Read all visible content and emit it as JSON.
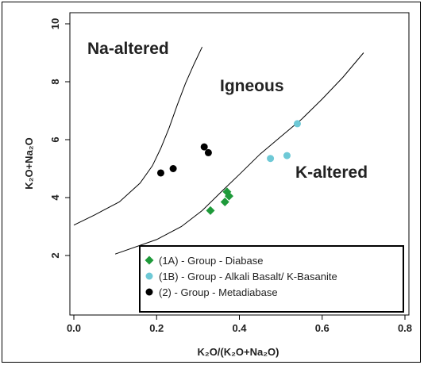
{
  "chart_data": {
    "type": "scatter",
    "xlabel": "K₂O/(K₂O+Na₂O)",
    "ylabel": "K₂O+Na₂O",
    "xlim": [
      0.0,
      0.8
    ],
    "ylim": [
      0,
      10
    ],
    "x_ticks": [
      "0.0",
      "0.2",
      "0.4",
      "0.6",
      "0.8"
    ],
    "y_ticks": [
      "2",
      "4",
      "6",
      "8",
      "10"
    ],
    "grid": false,
    "legend_position": "bottom-right",
    "regions": [
      {
        "label": "Na-altered"
      },
      {
        "label": "Igneous"
      },
      {
        "label": "K-altered"
      }
    ],
    "boundary_lines": [
      {
        "name": "Na-altered boundary",
        "x": [
          0.0,
          0.05,
          0.11,
          0.16,
          0.19,
          0.21,
          0.23,
          0.25,
          0.27,
          0.29,
          0.31
        ],
        "y": [
          3.05,
          3.4,
          3.85,
          4.5,
          5.1,
          5.7,
          6.4,
          7.2,
          7.95,
          8.6,
          9.2
        ]
      },
      {
        "name": "K-altered boundary",
        "x": [
          0.1,
          0.2,
          0.26,
          0.31,
          0.36,
          0.4,
          0.45,
          0.5,
          0.55,
          0.6,
          0.65,
          0.7
        ],
        "y": [
          2.05,
          2.55,
          3.0,
          3.55,
          4.25,
          4.8,
          5.5,
          6.1,
          6.7,
          7.4,
          8.15,
          9.0
        ]
      }
    ],
    "series": [
      {
        "name": "(1A) - Group - Diabase",
        "marker": "diamond",
        "color": "#1e9a3a",
        "x": [
          0.33,
          0.365,
          0.37,
          0.375
        ],
        "y": [
          3.55,
          3.85,
          4.2,
          4.05
        ]
      },
      {
        "name": "(1B) - Group - Alkali Basalt/ K-Basanite",
        "marker": "circle",
        "color": "#6ec9d6",
        "x": [
          0.475,
          0.515,
          0.54
        ],
        "y": [
          5.35,
          5.45,
          6.55
        ]
      },
      {
        "name": "(2) - Group  - Metadiabase",
        "marker": "circle",
        "color": "#000000",
        "x": [
          0.21,
          0.24,
          0.315,
          0.325
        ],
        "y": [
          4.85,
          5.0,
          5.75,
          5.55
        ]
      }
    ]
  }
}
